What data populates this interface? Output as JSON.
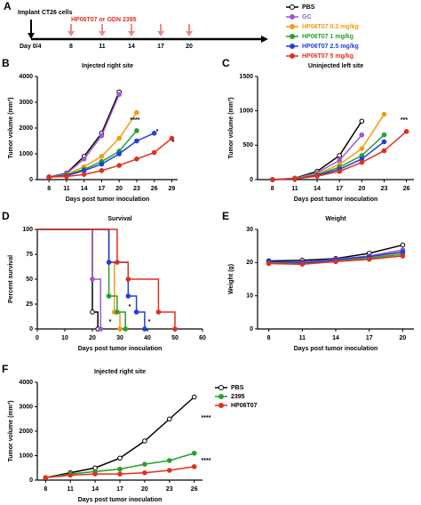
{
  "timeline": {
    "panel": "A",
    "implant": "Implant CT26 cells",
    "treatment": "HP06T07 or ODN 2395",
    "start": "Day 0/4",
    "days": [
      8,
      11,
      14,
      17,
      20
    ]
  },
  "chart_data": [
    {
      "type": "line",
      "panel": "B",
      "title": "Injected right site",
      "x_label": "Days post tumor inoculation",
      "y_label": "Tumor volume (mm³)",
      "x": [
        8,
        11,
        14,
        17,
        20,
        23,
        26,
        29
      ],
      "xlim": [
        6,
        30
      ],
      "xticks": [
        8,
        11,
        14,
        17,
        20,
        23,
        26,
        29
      ],
      "ylim": [
        0,
        4000
      ],
      "yticks": [
        0,
        1000,
        2000,
        3000,
        4000
      ],
      "series": [
        {
          "name": "PBS",
          "color": "#000000",
          "values": [
            100,
            250,
            900,
            1800,
            3400,
            null,
            null,
            null
          ]
        },
        {
          "name": "GC",
          "color": "#9b59d0",
          "values": [
            100,
            230,
            800,
            1700,
            3300,
            null,
            null,
            null
          ]
        },
        {
          "name": "HP06T07 0.3 mg/kg",
          "color": "#f39c12",
          "values": [
            100,
            200,
            500,
            900,
            1600,
            2600,
            null,
            null
          ]
        },
        {
          "name": "HP06T07 1 mg/kg",
          "color": "#27a02c",
          "values": [
            100,
            180,
            400,
            700,
            1100,
            1900,
            null,
            null
          ]
        },
        {
          "name": "HP06T07 2.5 mg/kg",
          "color": "#1f3fe0",
          "values": [
            100,
            150,
            350,
            600,
            1000,
            1500,
            1800,
            null
          ]
        },
        {
          "name": "HP06T07 5 mg/kg",
          "color": "#e0301e",
          "values": [
            100,
            120,
            200,
            350,
            550,
            800,
            1050,
            1600
          ]
        }
      ],
      "annotations": [
        "****",
        "*",
        "*"
      ]
    },
    {
      "type": "line",
      "panel": "C",
      "title": "Uninjected left site",
      "x_label": "Days post tumor inoculation",
      "y_label": "Tumor volume (mm³)",
      "x": [
        8,
        11,
        14,
        17,
        20,
        23,
        26
      ],
      "xlim": [
        6,
        27
      ],
      "xticks": [
        8,
        11,
        14,
        17,
        20,
        23,
        26
      ],
      "ylim": [
        0,
        1500
      ],
      "yticks": [
        0,
        500,
        1000,
        1500
      ],
      "series": [
        {
          "color": "#000000",
          "values": [
            0,
            20,
            120,
            350,
            850,
            null,
            null
          ]
        },
        {
          "color": "#9b59d0",
          "values": [
            0,
            15,
            100,
            280,
            650,
            null,
            null
          ]
        },
        {
          "color": "#f39c12",
          "values": [
            0,
            15,
            80,
            220,
            450,
            950,
            null
          ]
        },
        {
          "color": "#27a02c",
          "values": [
            0,
            10,
            70,
            180,
            350,
            650,
            null
          ]
        },
        {
          "color": "#1f3fe0",
          "values": [
            0,
            10,
            60,
            150,
            300,
            550,
            null
          ]
        },
        {
          "color": "#e0301e",
          "values": [
            0,
            10,
            50,
            120,
            250,
            420,
            700
          ]
        }
      ],
      "annotations": [
        "***"
      ]
    },
    {
      "type": "step",
      "panel": "D",
      "title": "Survival",
      "x_label": "Days post tumor inoculation",
      "y_label": "Percent survival",
      "xlim": [
        0,
        60
      ],
      "xticks": [
        0,
        10,
        20,
        30,
        40,
        50,
        60
      ],
      "ylim": [
        0,
        100
      ],
      "yticks": [
        0,
        25,
        50,
        75,
        100
      ],
      "series": [
        {
          "color": "#000000",
          "x": [
            0,
            20,
            22
          ],
          "values": [
            100,
            17,
            0
          ]
        },
        {
          "color": "#9b59d0",
          "x": [
            0,
            20,
            23
          ],
          "values": [
            100,
            50,
            0
          ]
        },
        {
          "color": "#f39c12",
          "x": [
            0,
            26,
            28,
            30
          ],
          "values": [
            100,
            67,
            17,
            0
          ]
        },
        {
          "color": "#27a02c",
          "x": [
            0,
            26,
            29,
            32
          ],
          "values": [
            100,
            33,
            17,
            0
          ]
        },
        {
          "color": "#1f3fe0",
          "x": [
            0,
            26,
            33,
            36,
            39
          ],
          "values": [
            100,
            67,
            33,
            17,
            0
          ]
        },
        {
          "color": "#e0301e",
          "x": [
            0,
            29,
            33,
            44,
            50
          ],
          "values": [
            100,
            67,
            50,
            17,
            0
          ]
        }
      ],
      "annotations": [
        "*",
        "*",
        "*"
      ]
    },
    {
      "type": "line",
      "panel": "E",
      "title": "Weight",
      "x_label": "Days post tumor inoculation",
      "y_label": "Weight (g)",
      "x": [
        8,
        11,
        14,
        17,
        20
      ],
      "xlim": [
        7,
        21
      ],
      "xticks": [
        8,
        11,
        14,
        17,
        20
      ],
      "ylim": [
        0,
        30
      ],
      "yticks": [
        0,
        10,
        20,
        30
      ],
      "series": [
        {
          "color": "#000000",
          "values": [
            20.5,
            20.7,
            21.2,
            22.8,
            25.3
          ]
        },
        {
          "color": "#9b59d0",
          "values": [
            20.2,
            20.2,
            21,
            22,
            23.8
          ]
        },
        {
          "color": "#f39c12",
          "values": [
            20,
            19.8,
            20.6,
            21.5,
            23
          ]
        },
        {
          "color": "#27a02c",
          "values": [
            19.8,
            19.6,
            20.4,
            21.3,
            22.5
          ]
        },
        {
          "color": "#1f3fe0",
          "values": [
            20.3,
            20,
            20.8,
            21.8,
            23.2
          ]
        },
        {
          "color": "#e0301e",
          "values": [
            19.7,
            19.5,
            20.3,
            21,
            22
          ]
        }
      ]
    },
    {
      "type": "line",
      "panel": "F",
      "title": "Injected right site",
      "x_label": "Days post tumor inoculation",
      "y_label": "Tumor volume (mm³)",
      "x": [
        8,
        11,
        14,
        17,
        20,
        23,
        26
      ],
      "xlim": [
        7,
        27
      ],
      "xticks": [
        8,
        11,
        14,
        17,
        20,
        23,
        26
      ],
      "ylim": [
        0,
        4000
      ],
      "yticks": [
        0,
        1000,
        2000,
        3000,
        4000
      ],
      "series": [
        {
          "name": "PBS",
          "color": "#000000",
          "values": [
            100,
            300,
            500,
            900,
            1600,
            2500,
            3400
          ]
        },
        {
          "name": "2395",
          "color": "#27a02c",
          "values": [
            100,
            250,
            350,
            450,
            650,
            800,
            1100
          ]
        },
        {
          "name": "HP06T07",
          "color": "#e0301e",
          "values": [
            100,
            200,
            250,
            250,
            300,
            400,
            550
          ]
        }
      ],
      "annotations": [
        "****",
        "****"
      ]
    }
  ]
}
